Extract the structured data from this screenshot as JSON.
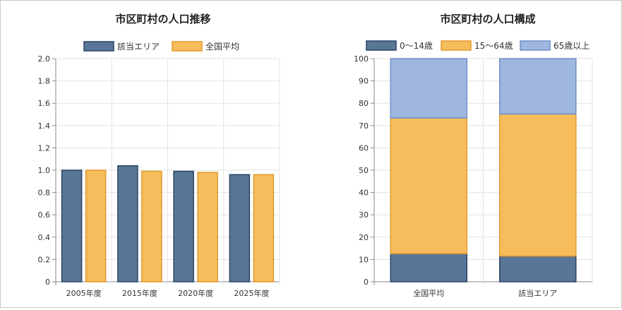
{
  "chart_data": [
    {
      "type": "bar",
      "title": "市区町村の人口推移",
      "categories": [
        "2005年度",
        "2015年度",
        "2020年度",
        "2025年度"
      ],
      "series": [
        {
          "name": "該当エリア",
          "values": [
            1.0,
            1.04,
            0.99,
            0.96
          ]
        },
        {
          "name": "全国平均",
          "values": [
            1.0,
            0.99,
            0.98,
            0.96
          ]
        }
      ],
      "ylim": [
        0,
        2.0
      ],
      "yticks": [
        "0",
        "0.2",
        "0.4",
        "0.6",
        "0.8",
        "1.0",
        "1.2",
        "1.4",
        "1.6",
        "1.8",
        "2.0"
      ],
      "grid": true,
      "legend": "top"
    },
    {
      "type": "bar",
      "stacked": true,
      "title": "市区町村の人口構成",
      "categories": [
        "全国平均",
        "該当エリア"
      ],
      "series": [
        {
          "name": "0～14歳",
          "values": [
            12.6,
            11.5
          ]
        },
        {
          "name": "15～64歳",
          "values": [
            60.8,
            63.7
          ]
        },
        {
          "name": "65歳以上",
          "values": [
            26.6,
            24.8
          ]
        }
      ],
      "ylim": [
        0,
        100
      ],
      "yticks": [
        "0",
        "10",
        "20",
        "30",
        "40",
        "50",
        "60",
        "70",
        "80",
        "90",
        "100"
      ],
      "grid": true,
      "legend": "top"
    }
  ],
  "colors": {
    "navy_fill": "#5a7696",
    "navy_edge": "#2a4466",
    "orange_fill": "#f5bd5c",
    "orange_edge": "#e39a2a",
    "blue_fill": "#9fb6df",
    "blue_edge": "#6f8fc9"
  }
}
